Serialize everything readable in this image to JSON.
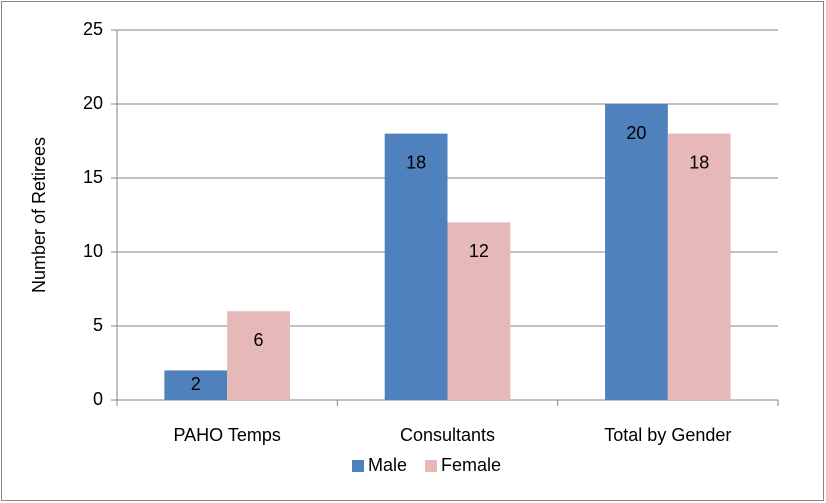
{
  "chart_data": {
    "type": "bar",
    "y_label": "Number of Retirees",
    "categories": [
      "PAHO Temps",
      "Consultants",
      "Total by Gender"
    ],
    "series": [
      {
        "name": "Male",
        "color": "#4f81bd",
        "values": [
          2,
          18,
          20
        ]
      },
      {
        "name": "Female",
        "color": "#e6b9b8",
        "values": [
          6,
          12,
          18
        ]
      }
    ],
    "ylim": [
      0,
      25
    ],
    "yticks": [
      0,
      5,
      10,
      15,
      20,
      25
    ],
    "grid": true,
    "legend": "bottom"
  }
}
